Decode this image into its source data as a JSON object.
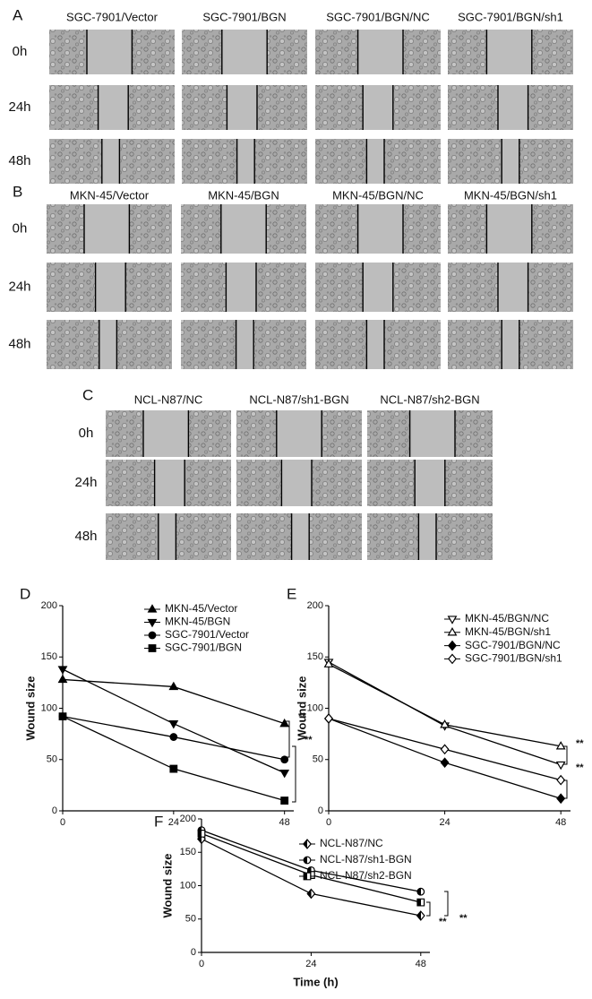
{
  "panels": [
    {
      "label": "A",
      "columns": [
        "SGC-7901/Vector",
        "SGC-7901/BGN",
        "SGC-7901/BGN/NC",
        "SGC-7901/BGN/sh1"
      ],
      "rows": [
        "0h",
        "24h",
        "48h"
      ]
    },
    {
      "label": "B",
      "columns": [
        "MKN-45/Vector",
        "MKN-45/BGN",
        "MKN-45/BGN/NC",
        "MKN-45/BGN/sh1"
      ],
      "rows": [
        "0h",
        "24h",
        "48h"
      ]
    },
    {
      "label": "C",
      "columns": [
        "NCL-N87/NC",
        "NCL-N87/sh1-BGN",
        "NCL-N87/sh2-BGN"
      ],
      "rows": [
        "0h",
        "24h",
        "48h"
      ]
    }
  ],
  "chart_data": [
    {
      "type": "line",
      "label": "D",
      "ylabel": "Wound size",
      "x": [
        0,
        24,
        48
      ],
      "xlim": [
        0,
        50
      ],
      "ylim": [
        0,
        200
      ],
      "xticks": [
        0,
        24,
        48
      ],
      "yticks": [
        0,
        50,
        100,
        150,
        200
      ],
      "legend": "upper right",
      "annotations": [
        "**",
        "**"
      ],
      "series": [
        {
          "name": "MKN-45/Vector",
          "color": "#000000",
          "marker": "triangle-up",
          "fill": "filled",
          "values": [
            128,
            121,
            85
          ]
        },
        {
          "name": "MKN-45/BGN",
          "color": "#000000",
          "marker": "triangle-down",
          "fill": "filled",
          "values": [
            138,
            85,
            37
          ]
        },
        {
          "name": "SGC-7901/Vector",
          "color": "#000000",
          "marker": "circle",
          "fill": "filled",
          "values": [
            92,
            72,
            50
          ]
        },
        {
          "name": "SGC-7901/BGN",
          "color": "#000000",
          "marker": "square",
          "fill": "filled",
          "values": [
            92,
            41,
            10
          ]
        }
      ]
    },
    {
      "type": "line",
      "label": "E",
      "ylabel": "Wound size",
      "x": [
        0,
        24,
        48
      ],
      "xlim": [
        0,
        50
      ],
      "ylim": [
        0,
        200
      ],
      "xticks": [
        0,
        24,
        48
      ],
      "yticks": [
        0,
        50,
        100,
        150,
        200
      ],
      "legend": "upper right",
      "annotations": [
        "**",
        "**"
      ],
      "series": [
        {
          "name": "MKN-45/BGN/NC",
          "color": "#000000",
          "marker": "triangle-down",
          "fill": "open",
          "values": [
            145,
            83,
            45
          ]
        },
        {
          "name": "MKN-45/BGN/sh1",
          "color": "#000000",
          "marker": "triangle-up",
          "fill": "open",
          "values": [
            143,
            84,
            63
          ]
        },
        {
          "name": "SGC-7901/BGN/NC",
          "color": "#000000",
          "marker": "diamond",
          "fill": "filled",
          "values": [
            90,
            47,
            12
          ]
        },
        {
          "name": "SGC-7901/BGN/sh1",
          "color": "#000000",
          "marker": "diamond",
          "fill": "open",
          "values": [
            90,
            60,
            30
          ]
        }
      ]
    },
    {
      "type": "line",
      "label": "F",
      "ylabel": "Wound size",
      "xlabel": "Time (h)",
      "x": [
        0,
        24,
        48
      ],
      "xlim": [
        0,
        50
      ],
      "ylim": [
        0,
        200
      ],
      "xticks": [
        0,
        24,
        48
      ],
      "yticks": [
        0,
        50,
        100,
        150,
        200
      ],
      "legend": "upper right",
      "annotations": [
        "**",
        "**"
      ],
      "series": [
        {
          "name": "NCL-N87/NC",
          "color": "#000000",
          "marker": "diamond",
          "fill": "half",
          "values": [
            170,
            88,
            55
          ]
        },
        {
          "name": "NCL-N87/sh1-BGN",
          "color": "#000000",
          "marker": "circle",
          "fill": "half",
          "values": [
            183,
            123,
            91
          ]
        },
        {
          "name": "NCL-N87/sh2-BGN",
          "color": "#000000",
          "marker": "square",
          "fill": "half",
          "values": [
            178,
            116,
            75
          ]
        }
      ]
    }
  ]
}
